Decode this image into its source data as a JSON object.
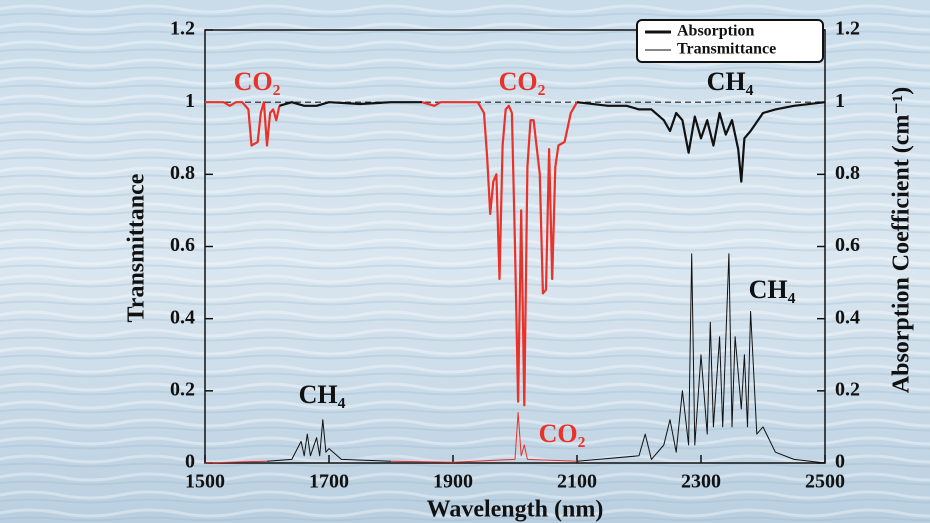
{
  "chart_data": {
    "type": "line",
    "xlabel": "Wavelength (nm)",
    "ylabel": "Transmittance",
    "y2label": "Absorption Coefficient (cm⁻¹)",
    "xlim": [
      1500,
      2500
    ],
    "xticks": [
      1500,
      1700,
      1900,
      2100,
      2300,
      2500
    ],
    "ylim": [
      0,
      1.2
    ],
    "yticks": [
      0,
      0.2,
      0.4,
      0.6,
      0.8,
      1,
      1.2
    ],
    "y2lim": [
      0,
      1.2
    ],
    "y2ticks": [
      0,
      0.2,
      0.4,
      0.6,
      0.8,
      1,
      1.2
    ],
    "reference_line": 1,
    "highlight": {
      "color": "#e8322a",
      "ranges": [
        [
          1530,
          1625
        ],
        [
          1860,
          2105
        ]
      ]
    },
    "legend_position": "upper right",
    "series": [
      {
        "name": "Absorption",
        "color": "#111111",
        "axis": "y2",
        "x": [
          1500,
          1600,
          1640,
          1655,
          1660,
          1665,
          1670,
          1680,
          1685,
          1690,
          1695,
          1700,
          1720,
          1800,
          1900,
          2000,
          2005,
          2010,
          2015,
          2020,
          2100,
          2200,
          2210,
          2220,
          2240,
          2250,
          2260,
          2270,
          2280,
          2285,
          2290,
          2300,
          2310,
          2315,
          2320,
          2330,
          2335,
          2345,
          2350,
          2355,
          2365,
          2370,
          2375,
          2380,
          2390,
          2400,
          2420,
          2450,
          2500
        ],
        "values": [
          0,
          0.005,
          0.01,
          0.06,
          0.02,
          0.08,
          0.02,
          0.07,
          0.02,
          0.12,
          0.03,
          0.04,
          0.01,
          0.005,
          0.002,
          0.01,
          0.14,
          0.02,
          0.05,
          0.01,
          0.005,
          0.02,
          0.08,
          0.01,
          0.05,
          0.12,
          0.03,
          0.2,
          0.05,
          0.58,
          0.05,
          0.3,
          0.08,
          0.39,
          0.1,
          0.35,
          0.1,
          0.58,
          0.1,
          0.35,
          0.15,
          0.3,
          0.1,
          0.42,
          0.08,
          0.1,
          0.03,
          0.01,
          0
        ]
      },
      {
        "name": "Transmittance",
        "color": "#111111",
        "x": [
          1500,
          1530,
          1540,
          1550,
          1560,
          1570,
          1575,
          1585,
          1590,
          1595,
          1600,
          1605,
          1610,
          1615,
          1620,
          1640,
          1660,
          1680,
          1700,
          1750,
          1800,
          1850,
          1870,
          1880,
          1900,
          1940,
          1950,
          1955,
          1960,
          1965,
          1970,
          1975,
          1980,
          1985,
          1990,
          1995,
          2000,
          2005,
          2010,
          2015,
          2020,
          2025,
          2030,
          2040,
          2045,
          2050,
          2055,
          2060,
          2065,
          2070,
          2080,
          2090,
          2100,
          2150,
          2180,
          2200,
          2220,
          2240,
          2250,
          2260,
          2270,
          2280,
          2290,
          2300,
          2310,
          2320,
          2330,
          2340,
          2350,
          2360,
          2365,
          2370,
          2380,
          2400,
          2420,
          2450,
          2500
        ],
        "values": [
          1,
          1,
          0.99,
          1,
          1,
          0.98,
          0.88,
          0.89,
          0.97,
          1,
          0.88,
          0.97,
          0.98,
          0.95,
          0.99,
          1,
          0.99,
          0.99,
          1,
          0.995,
          1,
          1,
          0.99,
          1,
          1,
          1,
          0.97,
          0.85,
          0.69,
          0.78,
          0.8,
          0.51,
          0.88,
          0.98,
          0.99,
          0.97,
          0.6,
          0.17,
          0.7,
          0.16,
          0.82,
          0.95,
          0.95,
          0.8,
          0.47,
          0.48,
          0.87,
          0.51,
          0.82,
          0.88,
          0.89,
          0.97,
          1,
          0.99,
          0.99,
          0.98,
          0.98,
          0.95,
          0.92,
          0.97,
          0.95,
          0.86,
          0.96,
          0.9,
          0.95,
          0.88,
          0.97,
          0.91,
          0.95,
          0.87,
          0.78,
          0.9,
          0.92,
          0.97,
          0.98,
          0.99,
          1
        ]
      }
    ],
    "annotations": [
      {
        "text": "CO₂",
        "color": "#e8322a"
      },
      {
        "text": "CO₂",
        "color": "#e8322a"
      },
      {
        "text": "CH₄",
        "color": "#111111"
      },
      {
        "text": "CH₄",
        "color": "#111111"
      },
      {
        "text": "CH₄",
        "color": "#111111"
      },
      {
        "text": "CO₂",
        "color": "#e8322a"
      }
    ]
  }
}
